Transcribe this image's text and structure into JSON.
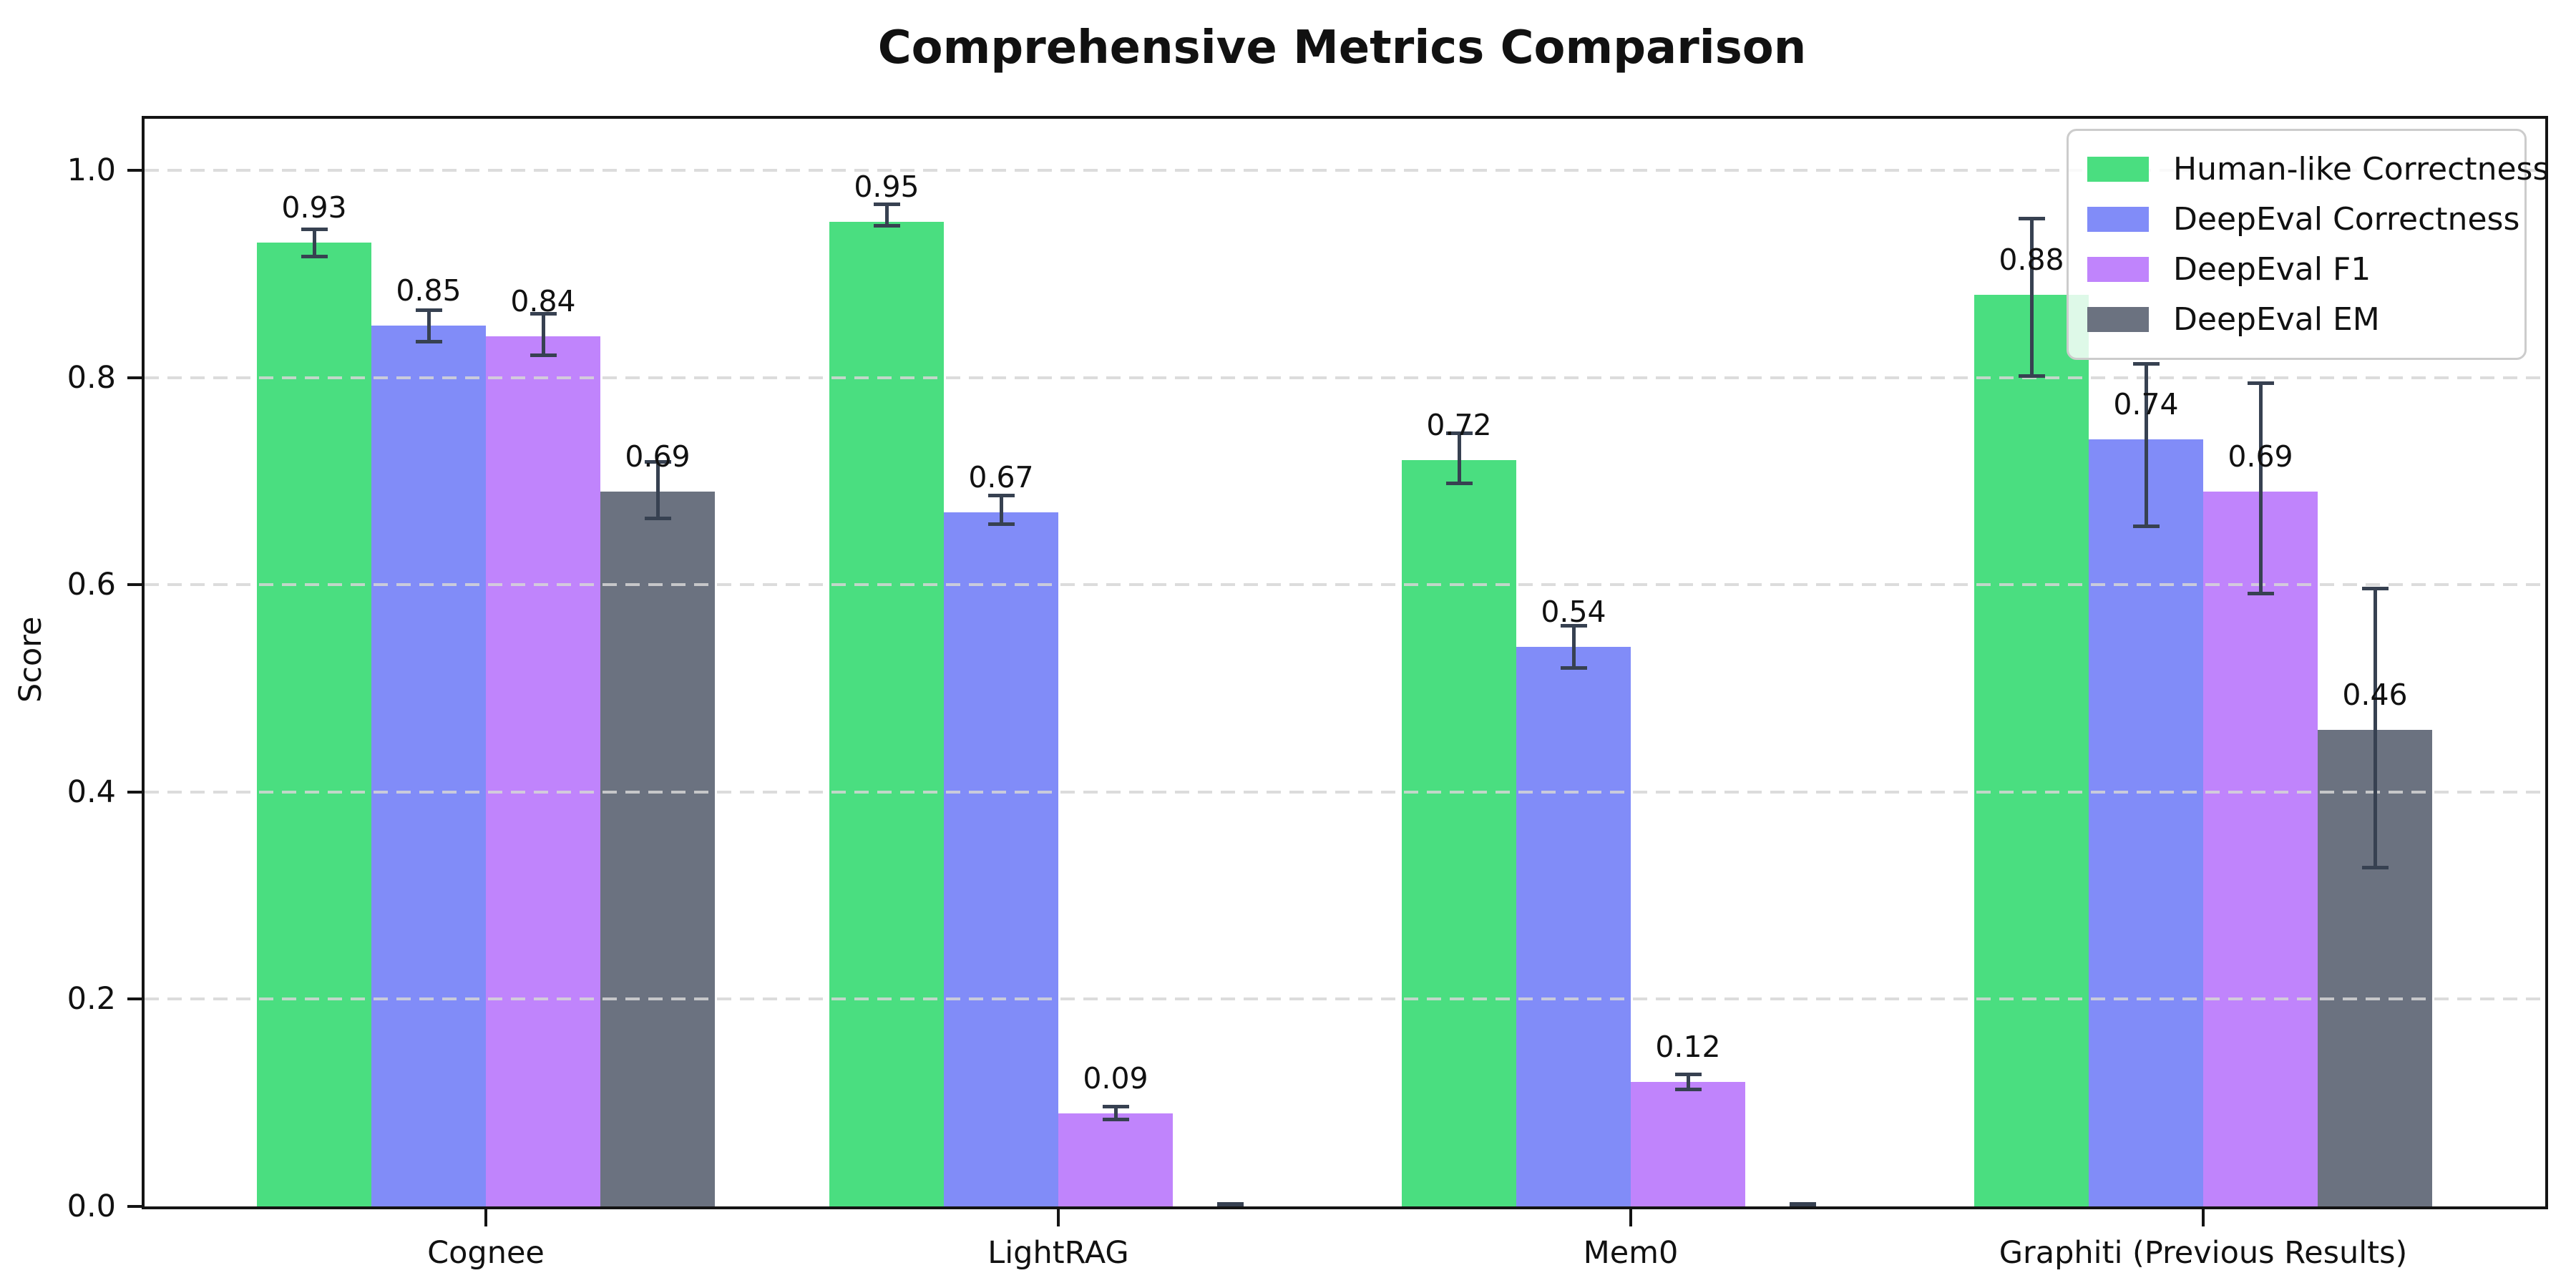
{
  "chart_data": {
    "type": "bar",
    "title": "Comprehensive Metrics Comparison",
    "ylabel": "Score",
    "xlabel": "",
    "ylim": [
      0.0,
      1.05
    ],
    "yticks": [
      0.0,
      0.2,
      0.4,
      0.6,
      0.8,
      1.0
    ],
    "ytick_labels": [
      "0.0",
      "0.2",
      "0.4",
      "0.6",
      "0.8",
      "1.0"
    ],
    "grid": "dashed horizontal, light gray",
    "legend_position": "upper right",
    "categories": [
      "Cognee",
      "LightRAG",
      "Mem0",
      "Graphiti (Previous Results)"
    ],
    "series": [
      {
        "name": "Human-like Correctness",
        "color": "#4ade80",
        "values": [
          0.93,
          0.95,
          0.72,
          0.88
        ],
        "err_lo": [
          0.915,
          0.945,
          0.696,
          0.8
        ],
        "err_hi": [
          0.945,
          0.969,
          0.748,
          0.955
        ],
        "bar_labels": [
          "0.93",
          "0.95",
          "0.72",
          "0.88"
        ]
      },
      {
        "name": "DeepEval Correctness",
        "color": "#818cf8",
        "values": [
          0.85,
          0.67,
          0.54,
          0.74
        ],
        "err_lo": [
          0.833,
          0.657,
          0.518,
          0.655
        ],
        "err_hi": [
          0.867,
          0.688,
          0.562,
          0.815
        ],
        "bar_labels": [
          "0.85",
          "0.67",
          "0.54",
          "0.74"
        ]
      },
      {
        "name": "DeepEval F1",
        "color": "#c084fc",
        "values": [
          0.84,
          0.09,
          0.12,
          0.69
        ],
        "err_lo": [
          0.82,
          0.082,
          0.111,
          0.59
        ],
        "err_hi": [
          0.863,
          0.098,
          0.129,
          0.796
        ],
        "bar_labels": [
          "0.84",
          "0.09",
          "0.12",
          "0.69"
        ]
      },
      {
        "name": "DeepEval EM",
        "color": "#6b7280",
        "values": [
          0.69,
          0.0,
          0.0,
          0.46
        ],
        "err_lo": [
          0.662,
          0.0,
          0.0,
          0.325
        ],
        "err_hi": [
          0.72,
          0.004,
          0.004,
          0.598
        ],
        "bar_labels": [
          "0.69",
          "",
          "",
          "0.46"
        ]
      }
    ],
    "colors": {
      "error_bar": "#374151",
      "spine": "#141414",
      "grid": "#d6d6d6",
      "background": "#ffffff",
      "text": "#111111"
    }
  }
}
